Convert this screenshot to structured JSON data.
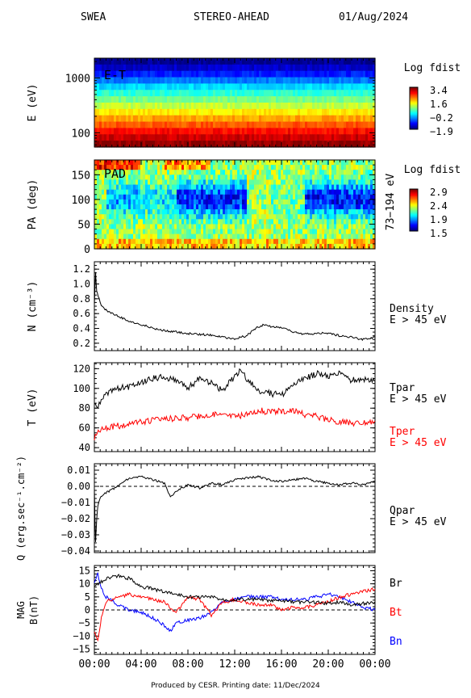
{
  "header": {
    "instrument": "SWEA",
    "spacecraft": "STEREO-AHEAD",
    "date": "01/Aug/2024"
  },
  "footer": "Produced by CESR.   Printing date: 11/Dec/2024",
  "xaxis": {
    "ticks": [
      "00:00",
      "04:00",
      "08:00",
      "12:00",
      "16:00",
      "20:00",
      "00:00"
    ],
    "hours": [
      0,
      4,
      8,
      12,
      16,
      20,
      24
    ]
  },
  "colors": {
    "black": "#000000",
    "red": "#ff0000",
    "blue": "#0000ff",
    "grid": "#000000"
  },
  "chart_data": [
    {
      "type": "heatmap",
      "id": "energy",
      "ylabel": "E (eV)",
      "scale": "log",
      "yticks": [
        100,
        1000
      ],
      "ylim": [
        55,
        2300
      ],
      "tag": "E-T",
      "colorbar": {
        "title": "Log fdist",
        "labels": [
          "3.4",
          "1.6",
          "−0.2",
          "−1.9"
        ],
        "range": [
          -1.9,
          3.4
        ]
      },
      "rows_high_to_low": [
        -1.8,
        -1.5,
        -1.1,
        -0.6,
        -0.1,
        0.3,
        0.7,
        1.1,
        1.5,
        1.9,
        2.3,
        2.7,
        3.0,
        3.3
      ]
    },
    {
      "type": "heatmap",
      "id": "pad",
      "ylabel": "PA (deg)",
      "yticks": [
        0,
        50,
        100,
        150
      ],
      "ylim": [
        0,
        180
      ],
      "tag": "PAD",
      "side_label": "73−194 eV",
      "colorbar": {
        "title": "Log fdist",
        "labels": [
          "2.9",
          "2.4",
          "1.9",
          "1.5"
        ],
        "range": [
          1.5,
          2.9
        ]
      }
    },
    {
      "type": "line",
      "id": "density",
      "ylabel": "N (cm⁻³)",
      "ylim": [
        0.1,
        1.3
      ],
      "yticks": [
        "0.2",
        "0.4",
        "0.6",
        "0.8",
        "1.0",
        "1.2"
      ],
      "ytick_values": [
        0.2,
        0.4,
        0.6,
        0.8,
        1.0,
        1.2
      ],
      "side_labels": [
        "Density",
        "E > 45 eV"
      ],
      "series": [
        {
          "color": "#000000",
          "x": [
            0,
            0.1,
            0.2,
            0.3,
            0.4,
            0.6,
            0.8,
            1,
            1.5,
            2,
            2.5,
            3,
            3.5,
            4,
            4.5,
            5,
            5.5,
            6,
            7,
            8,
            9,
            10,
            11,
            12,
            13,
            14,
            14.5,
            15,
            16,
            17,
            18,
            19,
            20,
            21,
            22,
            23,
            23.5,
            24
          ],
          "y": [
            0.7,
            1.15,
            0.9,
            0.85,
            0.8,
            0.7,
            0.68,
            0.65,
            0.6,
            0.57,
            0.53,
            0.5,
            0.47,
            0.45,
            0.43,
            0.4,
            0.38,
            0.37,
            0.35,
            0.33,
            0.32,
            0.31,
            0.28,
            0.26,
            0.3,
            0.42,
            0.45,
            0.43,
            0.41,
            0.35,
            0.32,
            0.33,
            0.34,
            0.3,
            0.28,
            0.25,
            0.27,
            0.28
          ]
        }
      ]
    },
    {
      "type": "line",
      "id": "temperature",
      "ylabel": "T (eV)",
      "ylim": [
        36,
        126
      ],
      "yticks": [
        "40",
        "60",
        "80",
        "100",
        "120"
      ],
      "ytick_values": [
        40,
        60,
        80,
        100,
        120
      ],
      "series": [
        {
          "name": "Tpar",
          "label2": "E > 45 eV",
          "color": "#000000",
          "x": [
            0,
            0.5,
            1,
            2,
            3,
            4,
            5,
            6,
            7,
            8,
            9,
            10,
            11,
            12,
            12.5,
            13,
            14,
            15,
            16,
            17,
            18,
            19,
            20,
            21,
            22,
            23,
            24
          ],
          "y": [
            82,
            85,
            95,
            100,
            102,
            105,
            110,
            112,
            108,
            100,
            110,
            105,
            98,
            112,
            118,
            110,
            98,
            95,
            93,
            104,
            110,
            115,
            112,
            115,
            108,
            110,
            108
          ]
        },
        {
          "name": "Tper",
          "label2": "E > 45 eV",
          "color": "#ff0000",
          "x": [
            0,
            0.5,
            1,
            2,
            3,
            4,
            5,
            6,
            7,
            8,
            9,
            10,
            11,
            12,
            13,
            14,
            15,
            16,
            17,
            18,
            19,
            20,
            21,
            22,
            23,
            24
          ],
          "y": [
            50,
            58,
            60,
            62,
            64,
            66,
            68,
            69,
            70,
            70,
            72,
            74,
            73,
            72,
            73,
            78,
            76,
            77,
            78,
            73,
            72,
            68,
            66,
            65,
            66,
            67
          ]
        }
      ]
    },
    {
      "type": "line",
      "id": "heatflux",
      "ylabel": "Q (erg.sec⁻¹.cm⁻²)",
      "ylim": [
        -0.041,
        0.014
      ],
      "yticks": [
        "−0.04",
        "−0.03",
        "−0.02",
        "−0.01",
        "0.00",
        "0.01"
      ],
      "ytick_values": [
        -0.04,
        -0.03,
        -0.02,
        -0.01,
        0,
        0.01
      ],
      "side_labels": [
        "Qpar",
        "E > 45 eV"
      ],
      "series": [
        {
          "color": "#000000",
          "x": [
            0,
            0.1,
            0.2,
            0.3,
            0.5,
            0.8,
            1,
            1.5,
            2,
            2.5,
            3,
            4,
            5,
            6,
            6.5,
            7,
            8,
            9,
            10,
            11,
            12,
            13,
            14,
            15,
            16,
            17,
            18,
            19,
            20,
            21,
            22,
            23,
            24
          ],
          "y": [
            -0.002,
            -0.035,
            -0.02,
            -0.012,
            -0.007,
            -0.005,
            -0.004,
            -0.002,
            0,
            0.003,
            0.005,
            0.006,
            0.004,
            0.002,
            -0.007,
            -0.003,
            0.001,
            -0.001,
            0.002,
            0.001,
            0.004,
            0.005,
            0.006,
            0.004,
            0.003,
            0.004,
            0.005,
            0.003,
            0.002,
            0.001,
            0.002,
            0.001,
            0.003
          ]
        }
      ]
    },
    {
      "type": "line",
      "id": "mag",
      "ylabel": "MAG",
      "ylabel2": "B(nT)",
      "ylim": [
        -17,
        17
      ],
      "yticks": [
        "−15",
        "−10",
        "−5",
        "0",
        "5",
        "10",
        "15"
      ],
      "ytick_values": [
        -15,
        -10,
        -5,
        0,
        5,
        10,
        15
      ],
      "series": [
        {
          "name": "Br",
          "color": "#000000",
          "x": [
            0,
            1,
            2,
            3,
            4,
            5,
            6,
            7,
            8,
            9,
            10,
            11,
            12,
            13,
            14,
            15,
            16,
            17,
            18,
            19,
            20,
            21,
            22,
            23,
            24
          ],
          "y": [
            9,
            12,
            13,
            12,
            9,
            8,
            7,
            6,
            5,
            5,
            5,
            4,
            4,
            4,
            4,
            3.5,
            3.5,
            3,
            3,
            3,
            2.5,
            3,
            2,
            2.5,
            3
          ]
        },
        {
          "name": "Bt",
          "color": "#ff0000",
          "x": [
            0,
            0.3,
            0.6,
            1,
            2,
            3,
            4,
            5,
            6,
            7,
            8,
            9,
            10,
            11,
            12,
            13,
            14,
            15,
            16,
            17,
            18,
            19,
            20,
            21,
            22,
            23,
            24
          ],
          "y": [
            -8,
            -12,
            -3,
            3,
            5,
            6,
            5,
            4,
            3,
            -1,
            5,
            4,
            -2,
            3,
            4,
            3,
            2,
            2,
            0,
            1,
            1,
            2,
            3,
            5,
            6,
            7,
            8
          ]
        },
        {
          "name": "Bn",
          "color": "#0000ff",
          "x": [
            0,
            0.3,
            0.6,
            1,
            2,
            3,
            4,
            5,
            6,
            6.5,
            7,
            8,
            9,
            10,
            11,
            12,
            13,
            14,
            15,
            16,
            17,
            18,
            19,
            20,
            21,
            22,
            23,
            24
          ],
          "y": [
            10,
            14,
            8,
            5,
            2,
            0,
            -1,
            -3,
            -6,
            -8,
            -5,
            -4,
            -3,
            -1,
            3,
            4,
            5,
            5,
            5,
            4,
            4,
            4,
            5,
            6,
            5,
            3,
            1,
            0
          ]
        }
      ]
    }
  ]
}
